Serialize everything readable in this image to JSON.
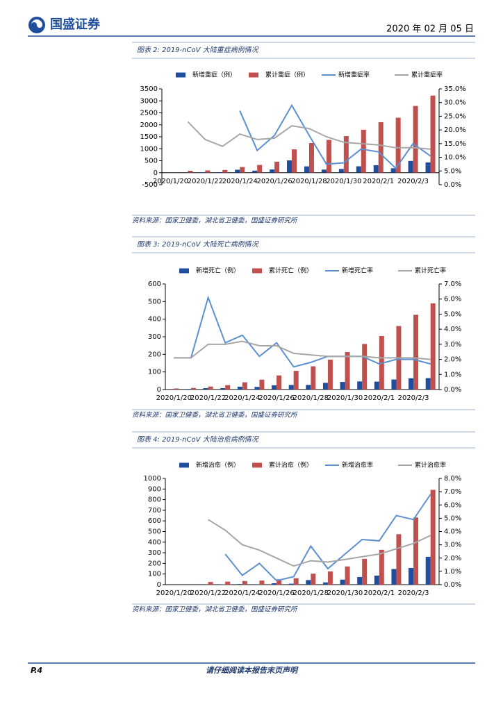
{
  "header": {
    "logo": "国盛证券",
    "date": "2020 年 02 月 05 日"
  },
  "chart_data": [
    {
      "type": "combo",
      "title": "图表 2: 2019-nCoV 大陆重症病例情况",
      "source": "资料来源：国家卫健委，湖北省卫健委，国盛证券研究所",
      "categories": [
        "2020/1/20",
        null,
        "2020/1/22",
        null,
        "2020/1/24",
        null,
        "2020/1/26",
        null,
        "2020/1/28",
        null,
        "2020/1/30",
        null,
        "2020/2/1",
        null,
        "2020/2/3",
        null
      ],
      "series": [
        {
          "name": "新增重症（例）",
          "type": "bar",
          "color": "#1f4e9c",
          "values": [
            null,
            null,
            15,
            20,
            125,
            85,
            135,
            515,
            265,
            130,
            157,
            268,
            315,
            186,
            492,
            431
          ]
        },
        {
          "name": "累计重症（例）",
          "type": "bar",
          "color": "#c0504d",
          "values": [
            null,
            80,
            95,
            115,
            240,
            325,
            460,
            975,
            1240,
            1370,
            1527,
            1795,
            2110,
            2296,
            2788,
            3219
          ]
        },
        {
          "name": "新增重症率",
          "type": "line",
          "axis": "y2",
          "color": "#5b8fd0",
          "values": [
            null,
            null,
            null,
            null,
            27,
            12.5,
            18,
            29,
            18,
            7.5,
            8,
            13,
            12,
            6,
            15,
            10.5
          ]
        },
        {
          "name": "累计重症率",
          "type": "line",
          "axis": "y2",
          "color": "#a6a6a6",
          "values": [
            null,
            23,
            16.5,
            14,
            18.5,
            16.5,
            17,
            21.5,
            20.5,
            17.5,
            15.5,
            15,
            14.5,
            13.5,
            13.5,
            13
          ]
        }
      ],
      "ylim": [
        -500,
        3500
      ],
      "yticks": [
        -500,
        0,
        500,
        1000,
        1500,
        2000,
        2500,
        3000,
        3500
      ],
      "y2lim": [
        0,
        35
      ],
      "y2ticks": [
        {
          "value": 0,
          "label": "0.0%"
        },
        {
          "value": 5,
          "label": "5.0%"
        },
        {
          "value": 10,
          "label": "10.0%"
        },
        {
          "value": 15,
          "label": "15.0%"
        },
        {
          "value": 20,
          "label": "20.0%"
        },
        {
          "value": 25,
          "label": "25.0%"
        },
        {
          "value": 30,
          "label": "30.0%"
        },
        {
          "value": 35,
          "label": "35.0%"
        }
      ]
    },
    {
      "type": "combo",
      "title": "图表 3: 2019-nCoV 大陆死亡病例情况",
      "source": "资料来源：国家卫健委，湖北省卫健委，国盛证券研究所",
      "categories": [
        "2020/1/20",
        null,
        "2020/1/22",
        null,
        "2020/1/24",
        null,
        "2020/1/26",
        null,
        "2020/1/28",
        null,
        "2020/1/30",
        null,
        "2020/2/1",
        null,
        "2020/2/3",
        null
      ],
      "series": [
        {
          "name": "新增死亡（例）",
          "type": "bar",
          "color": "#1f4e9c",
          "values": [
            null,
            3,
            8,
            8,
            16,
            15,
            24,
            26,
            26,
            38,
            43,
            46,
            45,
            57,
            64,
            65
          ]
        },
        {
          "name": "累计死亡（例）",
          "type": "bar",
          "color": "#c0504d",
          "values": [
            6,
            9,
            17,
            25,
            41,
            56,
            80,
            106,
            132,
            170,
            213,
            259,
            304,
            361,
            425,
            490
          ]
        },
        {
          "name": "新增死亡率",
          "type": "line",
          "axis": "y2",
          "color": "#5b8fd0",
          "values": [
            2.1,
            2.1,
            6.1,
            3.1,
            3.6,
            2.2,
            3.1,
            1.5,
            1.8,
            2.2,
            2.2,
            2.2,
            1.7,
            2.0,
            2.0,
            1.7
          ]
        },
        {
          "name": "累计死亡率",
          "type": "line",
          "axis": "y2",
          "color": "#a6a6a6",
          "values": [
            2.1,
            2.1,
            3.0,
            3.0,
            3.2,
            2.9,
            2.9,
            2.4,
            2.3,
            2.2,
            2.2,
            2.2,
            2.1,
            2.1,
            2.1,
            2.0
          ]
        }
      ],
      "ylim": [
        0,
        600
      ],
      "yticks": [
        0,
        100,
        200,
        300,
        400,
        500,
        600
      ],
      "y2lim": [
        0,
        7
      ],
      "y2ticks": [
        {
          "value": 0,
          "label": "0.0%"
        },
        {
          "value": 1,
          "label": "1.0%"
        },
        {
          "value": 2,
          "label": "2.0%"
        },
        {
          "value": 3,
          "label": "3.0%"
        },
        {
          "value": 4,
          "label": "4.0%"
        },
        {
          "value": 5,
          "label": "5.0%"
        },
        {
          "value": 6,
          "label": "6.0%"
        },
        {
          "value": 7,
          "label": "7.0%"
        }
      ]
    },
    {
      "type": "combo",
      "title": "图表 4: 2019-nCoV 大陆治愈病例情况",
      "source": "资料来源：国家卫健委，湖北省卫健委，国盛证券研究所",
      "categories": [
        "2020/1/20",
        null,
        "2020/1/22",
        null,
        "2020/1/24",
        null,
        "2020/1/26",
        null,
        "2020/1/28",
        null,
        "2020/1/30",
        null,
        "2020/2/1",
        null,
        "2020/2/3",
        null
      ],
      "series": [
        {
          "name": "新增治愈（例）",
          "type": "bar",
          "color": "#1f4e9c",
          "values": [
            null,
            null,
            null,
            3,
            6,
            4,
            13,
            9,
            43,
            21,
            47,
            72,
            85,
            147,
            157,
            262
          ]
        },
        {
          "name": "累计治愈（例）",
          "type": "bar",
          "color": "#c0504d",
          "values": [
            null,
            null,
            25,
            28,
            34,
            38,
            51,
            60,
            103,
            124,
            171,
            243,
            328,
            475,
            632,
            892
          ]
        },
        {
          "name": "新增治愈率",
          "type": "line",
          "axis": "y2",
          "color": "#5b8fd0",
          "values": [
            null,
            null,
            null,
            2.3,
            0.7,
            1.6,
            0.3,
            0.6,
            2.9,
            1.2,
            2.3,
            3.4,
            3.3,
            5.2,
            4.9,
            6.8
          ]
        },
        {
          "name": "累计治愈率",
          "type": "line",
          "axis": "y2",
          "color": "#a6a6a6",
          "values": [
            null,
            null,
            4.9,
            4.1,
            3.0,
            2.6,
            2.0,
            1.4,
            1.8,
            1.7,
            1.9,
            2.1,
            2.3,
            2.7,
            3.1,
            3.7
          ]
        }
      ],
      "ylim": [
        0,
        1000
      ],
      "yticks": [
        0,
        100,
        200,
        300,
        400,
        500,
        600,
        700,
        800,
        900,
        1000
      ],
      "y2lim": [
        0,
        8
      ],
      "y2ticks": [
        {
          "value": 0,
          "label": "0.0%"
        },
        {
          "value": 1,
          "label": "1.0%"
        },
        {
          "value": 2,
          "label": "2.0%"
        },
        {
          "value": 3,
          "label": "3.0%"
        },
        {
          "value": 4,
          "label": "4.0%"
        },
        {
          "value": 5,
          "label": "5.0%"
        },
        {
          "value": 6,
          "label": "6.0%"
        },
        {
          "value": 7,
          "label": "7.0%"
        },
        {
          "value": 8,
          "label": "8.0%"
        }
      ]
    }
  ],
  "footer": {
    "page": "P.4",
    "notice": "请仔细阅读本报告末页声明"
  }
}
